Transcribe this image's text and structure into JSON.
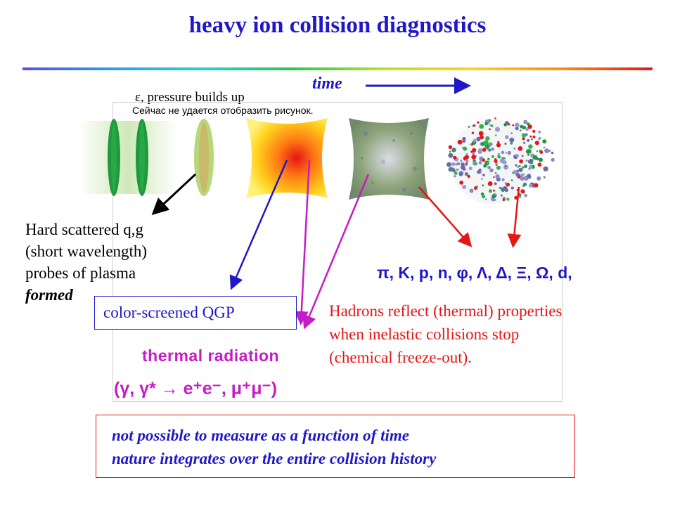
{
  "title": "heavy ion collision diagnostics",
  "time_label": "time",
  "pressure_label": "ε, pressure builds up",
  "broken_image_text": "Сейчас не удается отобразить рисунок.",
  "hard_scattered": {
    "line1": "Hard scattered q,g",
    "line2": "(short wavelength)",
    "line3": "probes of plasma",
    "line4": "formed"
  },
  "qgp_label": "color-screened QGP",
  "thermal_label": "thermal radiation",
  "thermal_symbols": "(γ, γ* → e⁺e⁻, μ⁺μ⁻)",
  "hadron_list": "π, K, p, n, φ, Λ, Δ, Ξ, Ω, d,",
  "hadron_text": {
    "line1": "Hadrons reflect (thermal) properties",
    "line2": "when inelastic collisions stop",
    "line3": "(chemical freeze-out)."
  },
  "note": {
    "line1": "not possible to measure as a function of time",
    "line2": "nature integrates over the entire collision history"
  },
  "colors": {
    "blue": "#1f17c8",
    "red": "#e41616",
    "magenta": "#c71ac7",
    "green": "#1e9a3c"
  }
}
